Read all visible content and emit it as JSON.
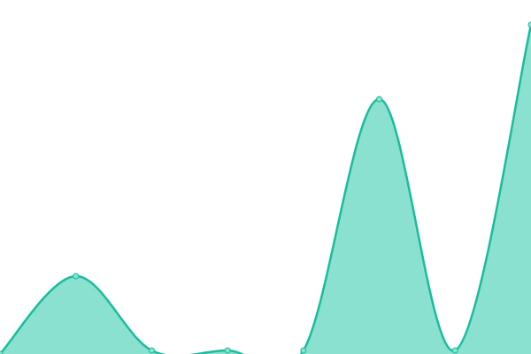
{
  "chart_data": {
    "type": "area",
    "categories": [
      null,
      null,
      null,
      null,
      null,
      null,
      null,
      null
    ],
    "values": [
      0,
      22,
      1,
      1,
      1,
      72,
      1,
      93
    ],
    "color": "#1abc9c",
    "fill": "#8ae1d0",
    "ylim": [
      0,
      100
    ]
  }
}
